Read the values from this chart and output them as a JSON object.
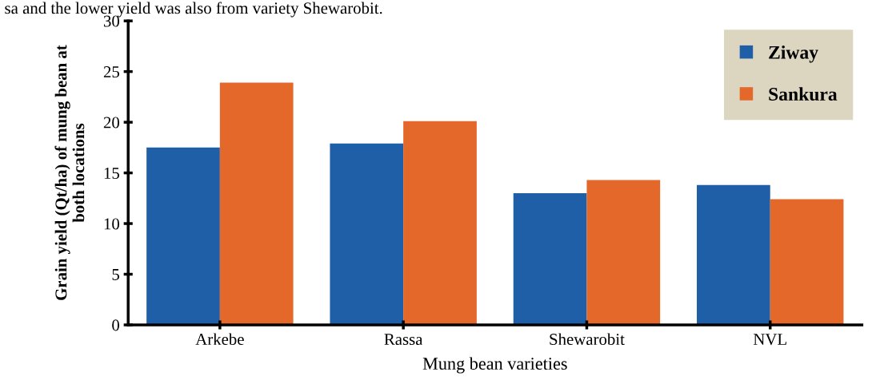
{
  "chart_data": {
    "type": "bar",
    "xlabel": "Mung bean varieties",
    "ylabel": "Grain yield (Qt/ha) of mung bean at\nboth locations",
    "categories": [
      "Arkebe",
      "Rassa",
      "Shewarobit",
      "NVL"
    ],
    "series": [
      {
        "name": "Ziway",
        "color": "#1f5fa8",
        "values": [
          17.5,
          17.9,
          13.0,
          13.8
        ]
      },
      {
        "name": "Sankura",
        "color": "#e3682a",
        "values": [
          23.9,
          20.1,
          14.3,
          12.4
        ]
      }
    ],
    "ylim": [
      0,
      30
    ],
    "yticks": [
      0,
      5,
      10,
      15,
      20,
      25,
      30
    ],
    "grid": false,
    "legend": "top right",
    "annotations": [
      "sa and the lower yield was also from variety Shewarobit."
    ]
  }
}
